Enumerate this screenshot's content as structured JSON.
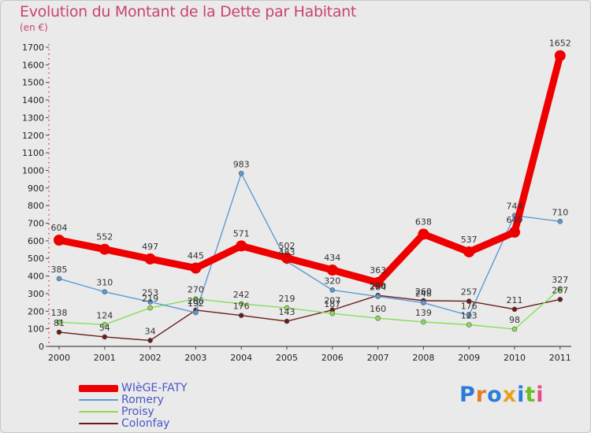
{
  "title": "Evolution du Montant de la Dette par Habitant",
  "subtitle": "(en €)",
  "logo_text": "Proxiti",
  "chart_data": {
    "type": "line",
    "title": "Evolution du Montant de la Dette par Habitant",
    "subtitle": "(en €)",
    "x": [
      "2000",
      "2001",
      "2002",
      "2003",
      "2004",
      "2005",
      "2006",
      "2007",
      "2008",
      "2009",
      "2010",
      "2011"
    ],
    "ylim": [
      0,
      1700
    ],
    "yticks": [
      0,
      100,
      200,
      300,
      400,
      500,
      600,
      700,
      800,
      900,
      1000,
      1100,
      1200,
      1300,
      1400,
      1500,
      1600,
      1700
    ],
    "grid": false,
    "legend_position": "bottom-left",
    "series": [
      {
        "name": "WIèGE-FATY",
        "color": "#ee0000",
        "values": [
          604,
          552,
          497,
          445,
          571,
          502,
          434,
          363,
          638,
          537,
          649,
          1652
        ]
      },
      {
        "name": "Romery",
        "color": "#5b9bd5",
        "values": [
          385,
          310,
          253,
          192,
          983,
          483,
          320,
          284,
          248,
          176,
          744,
          710
        ]
      },
      {
        "name": "Proisy",
        "color": "#88dd55",
        "values": [
          138,
          124,
          219,
          270,
          242,
          219,
          187,
          160,
          139,
          123,
          98,
          327
        ]
      },
      {
        "name": "Colonfay",
        "color": "#6b1a1a",
        "values": [
          81,
          54,
          34,
          206,
          176,
          143,
          207,
          290,
          260,
          257,
          211,
          267
        ]
      }
    ]
  }
}
